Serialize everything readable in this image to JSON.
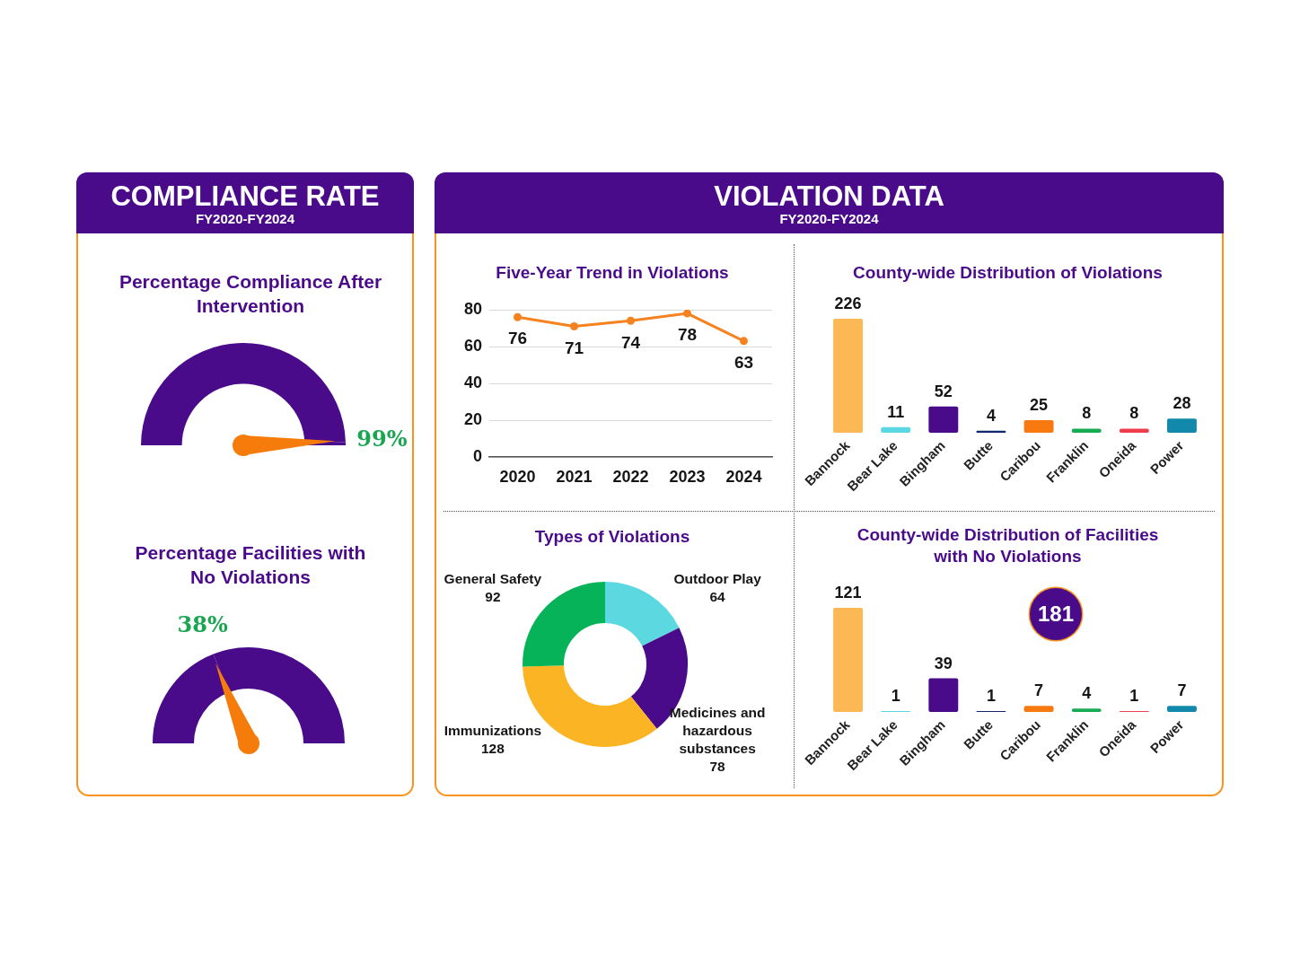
{
  "chart_data": [
    {
      "type": "other",
      "title": "COMPLIANCE RATE",
      "subtitle": "FY2020-FY2024"
    },
    {
      "type": "donut",
      "title": "Percentage Compliance After Intervention",
      "categories": [
        "99%",
        null
      ],
      "values": [
        99,
        1
      ],
      "colors": [
        "#4a0b8b",
        "#4a0b8b"
      ],
      "needle": "99%"
    },
    {
      "type": "donut",
      "title": "Percentage Facilities with No Violations",
      "categories": [
        "38%",
        null
      ],
      "values": [
        38,
        62
      ],
      "colors": [
        "#4a0b8b",
        "#4a0b8b"
      ],
      "needle": "38%"
    },
    {
      "type": "other",
      "title": "VIOLATION DATA",
      "subtitle": "FY2020-FY2024"
    },
    {
      "type": "line",
      "title": "Five-Year Trend in Violations",
      "categories": [
        "2020",
        "2021",
        "2022",
        "2023",
        "2024"
      ],
      "series": [
        {
          "color": "#f5821f",
          "values": [
            76,
            71,
            74,
            78,
            63
          ]
        }
      ],
      "ylim": [
        0,
        80
      ],
      "yticks": [
        0,
        20,
        40,
        60,
        80
      ],
      "grid": "y",
      "marker": "circle",
      "data_labels": true
    },
    {
      "type": "bar",
      "title": "County-wide Distribution of Violations",
      "categories": [
        "Bannock",
        "Bear Lake",
        "Bingham",
        "Butte",
        "Caribou",
        "Franklin",
        "Oneida",
        "Power"
      ],
      "values": [
        226,
        11,
        52,
        4,
        25,
        8,
        8,
        28
      ],
      "colors": [
        "#fbb855",
        "#5bd6e3",
        "#4a0b8b",
        "#13286b",
        "#f7790f",
        "#17ab52",
        "#ee3d4b",
        "#1289ab"
      ],
      "data_labels": true,
      "tick_labels": "x"
    },
    {
      "type": "donut",
      "title": "Types of Violations",
      "categories": [
        "Outdoor Play",
        "Medicines and hazardous substances",
        "Immunizations",
        "General Safety"
      ],
      "values": [
        64,
        78,
        128,
        92
      ],
      "colors": [
        "#5bd8e0",
        "#4a0b8b",
        "#fbb524",
        "#06b358"
      ],
      "data_labels": true
    },
    {
      "type": "bar",
      "title": "County-wide Distribution of Facilities with No Violations",
      "categories": [
        "Bannock",
        "Bear Lake",
        "Bingham",
        "Butte",
        "Caribou",
        "Franklin",
        "Oneida",
        "Power"
      ],
      "values": [
        121,
        1,
        39,
        1,
        7,
        4,
        1,
        7
      ],
      "colors": [
        "#fbb855",
        "#5bd6e3",
        "#4a0b8b",
        "#13286b",
        "#f7790f",
        "#17ab52",
        "#ee3d4b",
        "#1289ab"
      ],
      "data_labels": true,
      "tick_labels": "x",
      "annotations": [
        "181"
      ]
    }
  ]
}
